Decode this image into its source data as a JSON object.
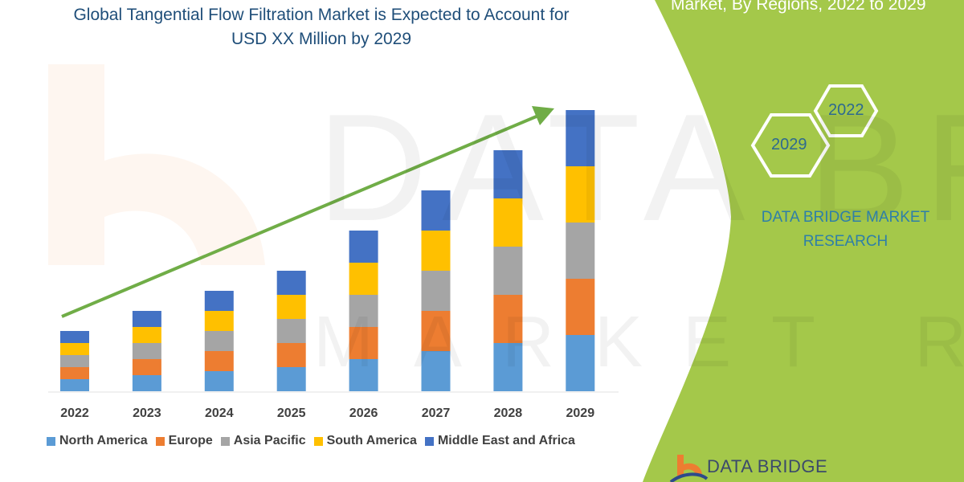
{
  "header": {
    "title_line1": "Global Tangential Flow Filtration Market is Expected to Account for",
    "title_line2": "USD XX Million by 2029",
    "right_title": "Market, By Regions, 2022 to 2029"
  },
  "side_panel": {
    "hex_start": "2022",
    "hex_end": "2029",
    "brand_line1": "DATA BRIDGE MARKET",
    "brand_line2": "RESEARCH",
    "logo_text": "DATA BRIDGE",
    "panel_color": "#a4c84a"
  },
  "watermark": {
    "line1": "DATA BRIDGE",
    "line2": "MARKET RESEARCH"
  },
  "chart_data": {
    "type": "bar",
    "stacked": true,
    "categories": [
      "2022",
      "2023",
      "2024",
      "2025",
      "2026",
      "2027",
      "2028",
      "2029"
    ],
    "series": [
      {
        "name": "North America",
        "color": "#5b9bd5",
        "values": [
          15,
          20,
          25,
          30,
          40,
          50,
          60,
          70
        ]
      },
      {
        "name": "Europe",
        "color": "#ed7d31",
        "values": [
          15,
          20,
          25,
          30,
          40,
          50,
          60,
          70
        ]
      },
      {
        "name": "Asia Pacific",
        "color": "#a5a5a5",
        "values": [
          15,
          20,
          25,
          30,
          40,
          50,
          60,
          70
        ]
      },
      {
        "name": "South America",
        "color": "#ffc000",
        "values": [
          15,
          20,
          25,
          30,
          40,
          50,
          60,
          70
        ]
      },
      {
        "name": "Middle East and Africa",
        "color": "#4472c4",
        "values": [
          15,
          20,
          25,
          30,
          40,
          50,
          60,
          70
        ]
      }
    ],
    "title": "",
    "xlabel": "",
    "ylabel": "",
    "y_axis_shown": false,
    "grid": false,
    "legend": "bottom",
    "trend_arrow_color": "#70ad47"
  }
}
